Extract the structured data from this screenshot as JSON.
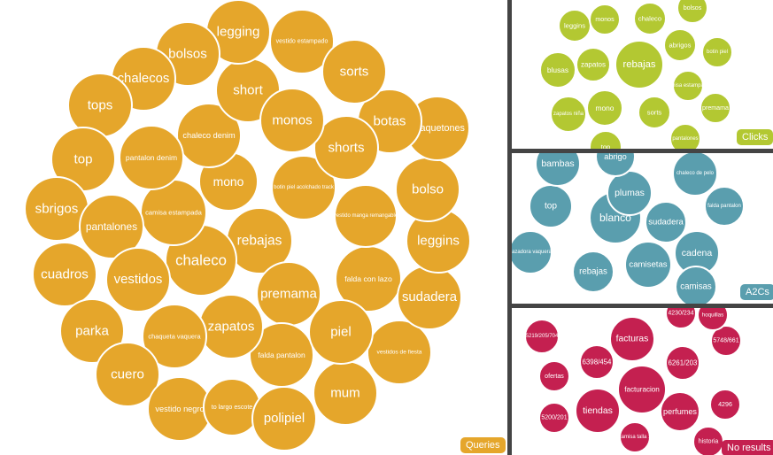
{
  "chart_data": [
    {
      "type": "bubble",
      "legend": "Queries",
      "color": "#E5A62B",
      "bubbles": [
        {
          "label": "rebajas",
          "value": 100
        },
        {
          "label": "mono",
          "value": 45
        },
        {
          "label": "chaleco",
          "value": 45
        },
        {
          "label": "premama",
          "value": 40
        },
        {
          "label": "falda con lazo",
          "value": 38
        },
        {
          "label": "vestido manga remangable",
          "value": 38
        },
        {
          "label": "botin piel acolchado track",
          "value": 36
        },
        {
          "label": "camisa estampada",
          "value": 36
        },
        {
          "label": "chaleco denim",
          "value": 36
        },
        {
          "label": "pantalon denim",
          "value": 36
        },
        {
          "label": "falda pantalon",
          "value": 36
        },
        {
          "label": "zapatos",
          "value": 36
        },
        {
          "label": "chaqueta vaquera",
          "value": 36
        },
        {
          "label": "short",
          "value": 36
        },
        {
          "label": "legging",
          "value": 36
        },
        {
          "label": "vestido estampado",
          "value": 36
        },
        {
          "label": "bolsos",
          "value": 36
        },
        {
          "label": "chalecos",
          "value": 36
        },
        {
          "label": "tops",
          "value": 36
        },
        {
          "label": "top",
          "value": 36
        },
        {
          "label": "sbrigos",
          "value": 36
        },
        {
          "label": "pantalones",
          "value": 36
        },
        {
          "label": "cuadros",
          "value": 36
        },
        {
          "label": "vestidos",
          "value": 36
        },
        {
          "label": "parka",
          "value": 36
        },
        {
          "label": "cuero",
          "value": 36
        },
        {
          "label": "vestido negro",
          "value": 36
        },
        {
          "label": "to largo escote",
          "value": 32
        },
        {
          "label": "polipiel",
          "value": 36
        },
        {
          "label": "mum",
          "value": 36
        },
        {
          "label": "vestidos de fiesta",
          "value": 36
        },
        {
          "label": "piel",
          "value": 36
        },
        {
          "label": "sudadera",
          "value": 36
        },
        {
          "label": "leggins",
          "value": 36
        },
        {
          "label": "bolso",
          "value": 36
        },
        {
          "label": "chaquetones",
          "value": 36
        },
        {
          "label": "botas",
          "value": 36
        },
        {
          "label": "shorts",
          "value": 36
        },
        {
          "label": "monos",
          "value": 36
        },
        {
          "label": "sorts",
          "value": 36
        }
      ]
    },
    {
      "type": "bubble",
      "legend": "Clicks",
      "color": "#B3C832",
      "bubbles": [
        {
          "label": "rebajas",
          "value": 100
        },
        {
          "label": "mono",
          "value": 55
        },
        {
          "label": "leggins",
          "value": 40
        },
        {
          "label": "monos",
          "value": 40
        },
        {
          "label": "chaleco",
          "value": 45
        },
        {
          "label": "bolsos",
          "value": 38
        },
        {
          "label": "abrigos",
          "value": 40
        },
        {
          "label": "botin piel",
          "value": 40
        },
        {
          "label": "blusas",
          "value": 45
        },
        {
          "label": "zapatos",
          "value": 45
        },
        {
          "label": "nisa estampa",
          "value": 38
        },
        {
          "label": "premama",
          "value": 40
        },
        {
          "label": "zapatos niña",
          "value": 42
        },
        {
          "label": "sorts",
          "value": 40
        },
        {
          "label": "pantalones",
          "value": 36
        },
        {
          "label": "top",
          "value": 36
        }
      ]
    },
    {
      "type": "bubble",
      "legend": "A2Cs",
      "color": "#5A9EAE",
      "bubbles": [
        {
          "label": "blanco",
          "value": 100
        },
        {
          "label": "plumas",
          "value": 85
        },
        {
          "label": "sudadera",
          "value": 80
        },
        {
          "label": "cadena",
          "value": 80
        },
        {
          "label": "top",
          "value": 80
        },
        {
          "label": "bambas",
          "value": 80
        },
        {
          "label": "abrigo",
          "value": 70
        },
        {
          "label": "chaleco de pelo",
          "value": 65
        },
        {
          "label": "falda pantalon",
          "value": 55
        },
        {
          "label": "cazadora vaquera",
          "value": 60
        },
        {
          "label": "rebajas",
          "value": 65
        },
        {
          "label": "camisetas",
          "value": 80
        },
        {
          "label": "camisas",
          "value": 60
        }
      ]
    },
    {
      "type": "bubble",
      "legend": "No results",
      "color": "#C42050",
      "bubbles": [
        {
          "label": "facturas",
          "value": 95
        },
        {
          "label": "tiendas",
          "value": 95
        },
        {
          "label": "facturacion",
          "value": 100
        },
        {
          "label": "6398/454",
          "value": 60
        },
        {
          "label": "6261/203",
          "value": 60
        },
        {
          "label": "perfumes",
          "value": 65
        },
        {
          "label": "4296",
          "value": 50
        },
        {
          "label": "5748/661",
          "value": 50
        },
        {
          "label": "hoquillas",
          "value": 45
        },
        {
          "label": "4230/234",
          "value": 45
        },
        {
          "label": "5219/205/704",
          "value": 55
        },
        {
          "label": "ofertas",
          "value": 50
        },
        {
          "label": "5200/201",
          "value": 50
        },
        {
          "label": "camisa talla 1",
          "value": 50
        },
        {
          "label": "historia",
          "value": 45
        }
      ]
    }
  ]
}
